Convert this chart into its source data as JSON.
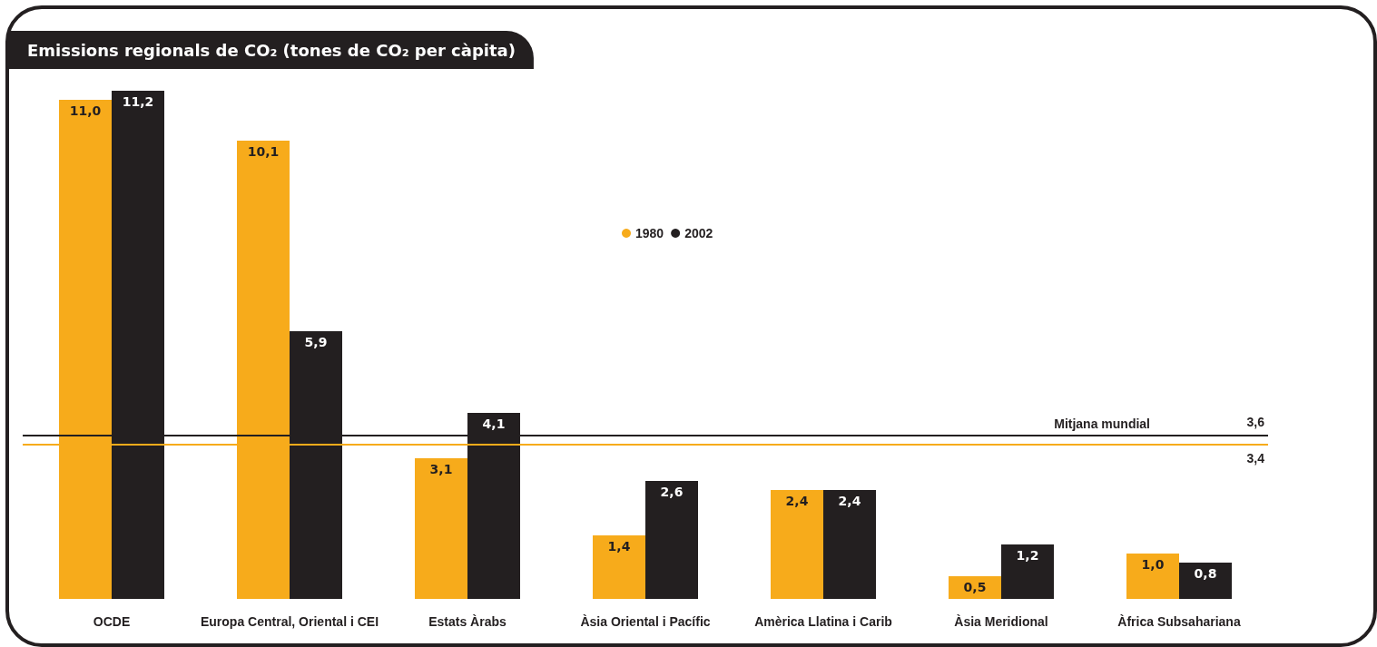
{
  "chart_data": {
    "type": "bar",
    "title": "Emissions regionals de CO₂ (tones de CO₂ per càpita)",
    "categories": [
      "OCDE",
      "Europa Central, Oriental i CEI",
      "Estats Àrabs",
      "Àsia Oriental i Pacífic",
      "Amèrica Llatina i Carib",
      "Àsia Meridional",
      "Àfrica Subsahariana"
    ],
    "series": [
      {
        "name": "1980",
        "color": "#f7ab1b",
        "values": [
          11.0,
          10.1,
          3.1,
          1.4,
          2.4,
          0.5,
          1.0
        ],
        "value_labels": [
          "11,0",
          "10,1",
          "3,1",
          "1,4",
          "2,4",
          "0,5",
          "1,0"
        ]
      },
      {
        "name": "2002",
        "color": "#231f20",
        "values": [
          11.2,
          5.9,
          4.1,
          2.6,
          2.4,
          1.2,
          0.8
        ],
        "value_labels": [
          "11,2",
          "5,9",
          "4,1",
          "2,6",
          "2,4",
          "1,2",
          "0,8"
        ]
      }
    ],
    "ylim": [
      0,
      11.2
    ],
    "legend": "top",
    "ref_lines": [
      {
        "axis": "y",
        "value": 3.6,
        "label": "3,6",
        "color": "#231f20"
      },
      {
        "axis": "y",
        "value": 3.4,
        "label": "3,4",
        "color": "#f7ab1b"
      }
    ],
    "annotations": [
      {
        "text": "Mitjana mundial",
        "y": 3.6
      }
    ]
  }
}
